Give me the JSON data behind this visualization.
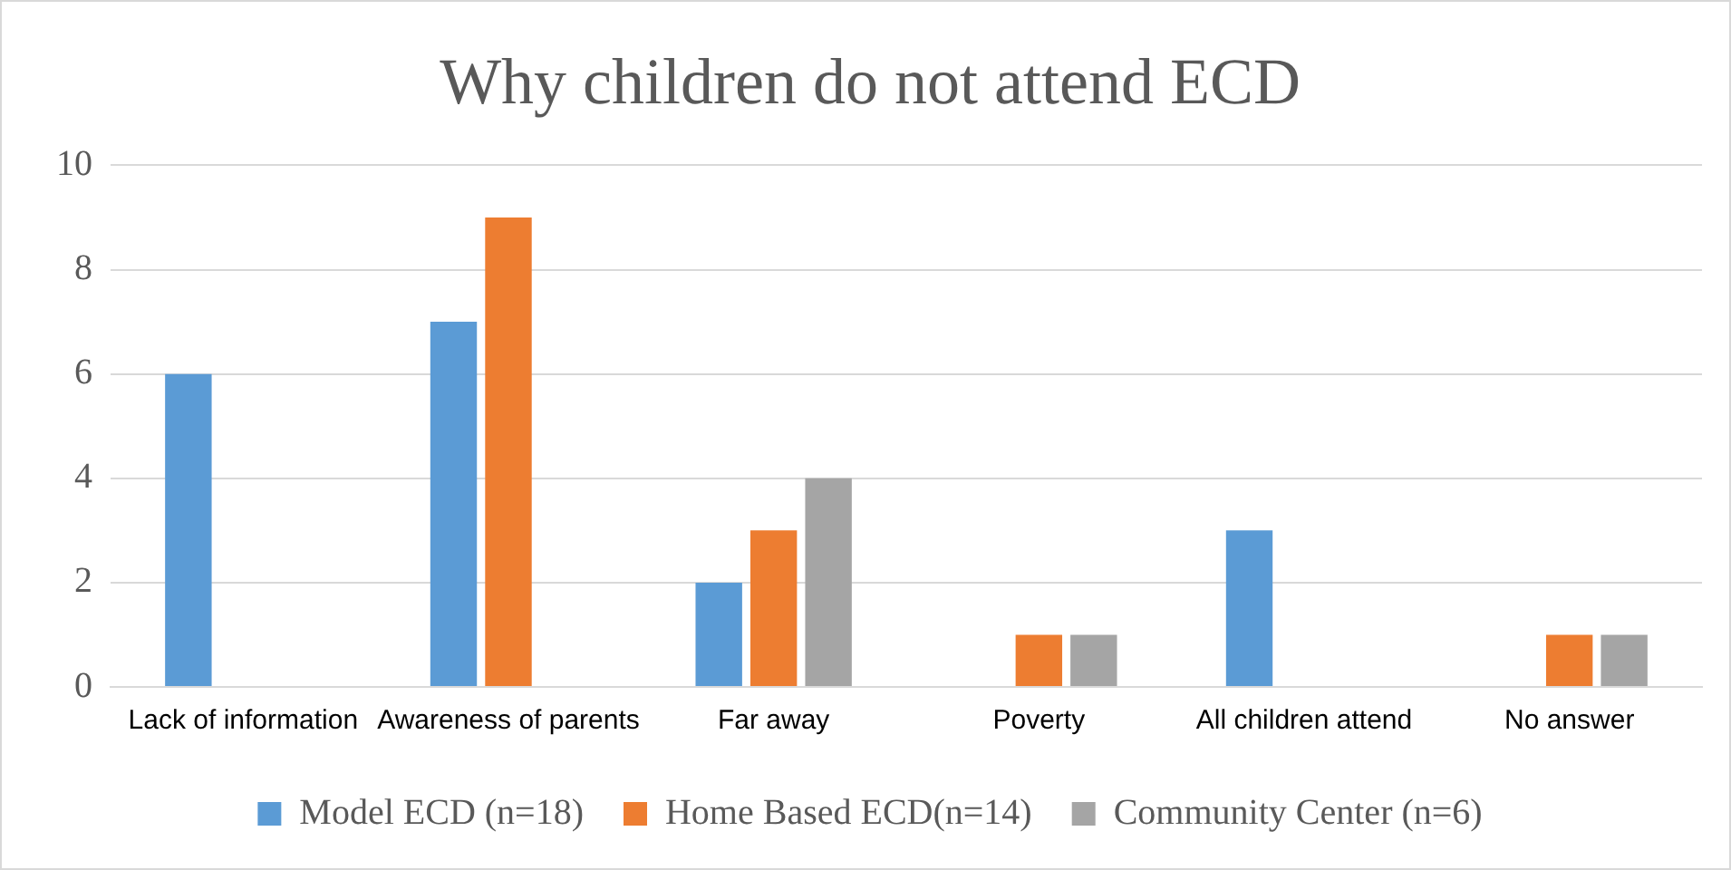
{
  "chart_data": {
    "type": "bar",
    "title": "Why children do not attend ECD",
    "categories": [
      "Lack of information",
      "Awareness of parents",
      "Far away",
      "Poverty",
      "All children attend",
      "No answer"
    ],
    "series": [
      {
        "name": "Model ECD (n=18)",
        "color": "#5b9bd5",
        "values": [
          6,
          7,
          2,
          0,
          3,
          0
        ]
      },
      {
        "name": "Home Based ECD(n=14)",
        "color": "#ed7d31",
        "values": [
          0,
          9,
          3,
          1,
          0,
          1
        ]
      },
      {
        "name": "Community Center (n=6)",
        "color": "#a5a5a5",
        "values": [
          0,
          0,
          4,
          1,
          0,
          1
        ]
      }
    ],
    "ylim": [
      0,
      10
    ],
    "yticks": [
      0,
      2,
      4,
      6,
      8,
      10
    ],
    "grid": "y",
    "legend": "bottom"
  }
}
